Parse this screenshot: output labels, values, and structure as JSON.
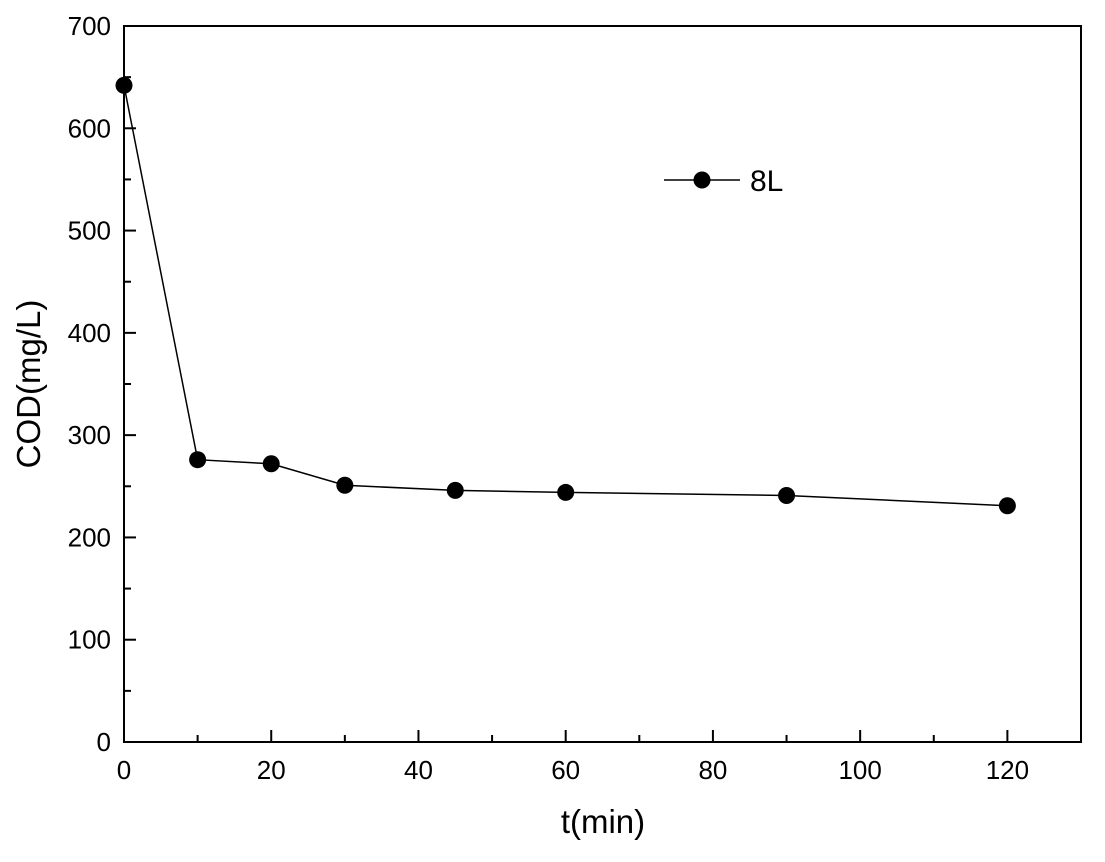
{
  "chart_data": {
    "type": "line",
    "xlabel": "t(min)",
    "ylabel": "COD(mg/L)",
    "xlim": [
      0,
      130
    ],
    "ylim": [
      0,
      700
    ],
    "x_ticks": [
      0,
      20,
      40,
      60,
      80,
      100,
      120
    ],
    "x_minor_ticks": [
      10,
      30,
      50,
      70,
      90,
      110,
      130
    ],
    "y_ticks": [
      0,
      100,
      200,
      300,
      400,
      500,
      600,
      700
    ],
    "y_minor_ticks": [
      50,
      150,
      250,
      350,
      450,
      550,
      650
    ],
    "grid": false,
    "legend_position": "top-right",
    "colors": {
      "series": "#000000",
      "axis": "#000000",
      "background": "#ffffff"
    },
    "series": [
      {
        "name": "8L",
        "marker": "circle",
        "x": [
          0,
          10,
          20,
          30,
          45,
          60,
          90,
          120
        ],
        "y": [
          642,
          276,
          272,
          251,
          246,
          244,
          241,
          231
        ]
      }
    ]
  }
}
